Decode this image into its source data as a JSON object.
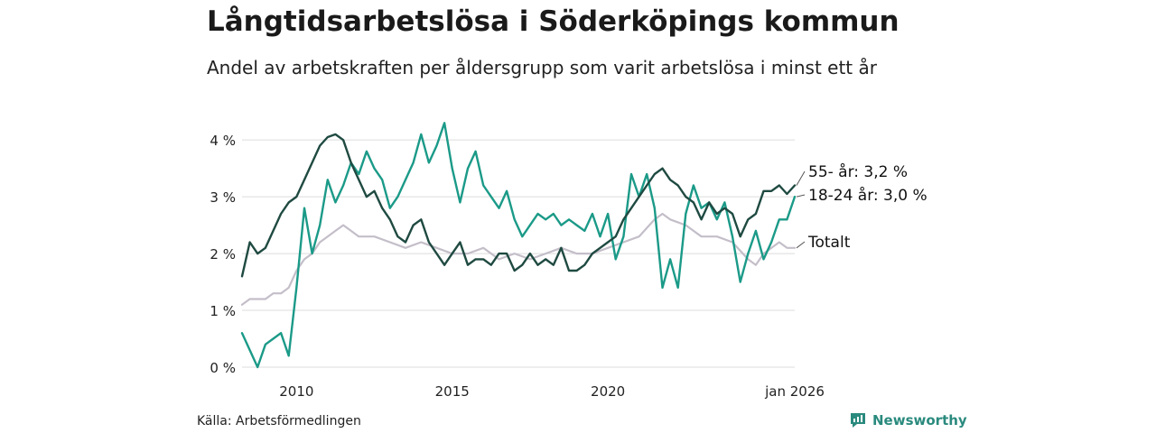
{
  "header": {
    "title": "Långtidsarbetslösa i Söderköpings kommun",
    "subtitle": "Andel av arbetskraften per åldersgrupp som varit arbetslösa i minst ett år"
  },
  "footer": {
    "source": "Källa: Arbetsförmedlingen",
    "brand": "Newsworthy"
  },
  "colors": {
    "series_55": "#1f4a41",
    "series_18_24": "#1b9a88",
    "series_total": "#c4bec9",
    "grid": "#dcdcdc",
    "brand": "#2a8a7e"
  },
  "chart_data": {
    "type": "line",
    "title": "Långtidsarbetslösa i Söderköpings kommun",
    "xlabel": "",
    "ylabel": "",
    "x_range": [
      2008.25,
      2026.0
    ],
    "ylim": [
      0,
      4.4
    ],
    "y_ticks": [
      0,
      1,
      2,
      3,
      4
    ],
    "y_tick_labels": [
      "0 %",
      "1 %",
      "2 %",
      "3 %",
      "4 %"
    ],
    "x_ticks": [
      2010,
      2015,
      2020,
      2026
    ],
    "x_tick_labels": [
      "2010",
      "2015",
      "2020",
      "jan 2026"
    ],
    "grid": true,
    "series": [
      {
        "name": "Totalt",
        "label": "Totalt",
        "color": "#c4bec9",
        "points": [
          [
            2008.25,
            1.1
          ],
          [
            2008.5,
            1.2
          ],
          [
            2008.75,
            1.2
          ],
          [
            2009.0,
            1.2
          ],
          [
            2009.25,
            1.3
          ],
          [
            2009.5,
            1.3
          ],
          [
            2009.75,
            1.4
          ],
          [
            2010.0,
            1.7
          ],
          [
            2010.25,
            1.9
          ],
          [
            2010.5,
            2.0
          ],
          [
            2010.75,
            2.2
          ],
          [
            2011.0,
            2.3
          ],
          [
            2011.25,
            2.4
          ],
          [
            2011.5,
            2.5
          ],
          [
            2011.75,
            2.4
          ],
          [
            2012.0,
            2.3
          ],
          [
            2012.5,
            2.3
          ],
          [
            2013.0,
            2.2
          ],
          [
            2013.5,
            2.1
          ],
          [
            2014.0,
            2.2
          ],
          [
            2014.5,
            2.1
          ],
          [
            2015.0,
            2.0
          ],
          [
            2015.5,
            2.0
          ],
          [
            2016.0,
            2.1
          ],
          [
            2016.5,
            1.9
          ],
          [
            2017.0,
            2.0
          ],
          [
            2017.5,
            1.9
          ],
          [
            2018.0,
            2.0
          ],
          [
            2018.5,
            2.1
          ],
          [
            2019.0,
            2.0
          ],
          [
            2019.5,
            2.0
          ],
          [
            2020.0,
            2.1
          ],
          [
            2020.5,
            2.2
          ],
          [
            2021.0,
            2.3
          ],
          [
            2021.5,
            2.6
          ],
          [
            2021.75,
            2.7
          ],
          [
            2022.0,
            2.6
          ],
          [
            2022.5,
            2.5
          ],
          [
            2023.0,
            2.3
          ],
          [
            2023.5,
            2.3
          ],
          [
            2024.0,
            2.2
          ],
          [
            2024.5,
            1.9
          ],
          [
            2024.75,
            1.8
          ],
          [
            2025.0,
            2.0
          ],
          [
            2025.5,
            2.2
          ],
          [
            2025.75,
            2.1
          ],
          [
            2026.0,
            2.1
          ]
        ],
        "end_label": "Totalt"
      },
      {
        "name": "18-24 år",
        "label": "18-24 år",
        "color": "#1b9a88",
        "points": [
          [
            2008.25,
            0.6
          ],
          [
            2008.5,
            0.3
          ],
          [
            2008.75,
            0.0
          ],
          [
            2009.0,
            0.4
          ],
          [
            2009.25,
            0.5
          ],
          [
            2009.5,
            0.6
          ],
          [
            2009.75,
            0.2
          ],
          [
            2010.0,
            1.4
          ],
          [
            2010.25,
            2.8
          ],
          [
            2010.5,
            2.0
          ],
          [
            2010.75,
            2.5
          ],
          [
            2011.0,
            3.3
          ],
          [
            2011.25,
            2.9
          ],
          [
            2011.5,
            3.2
          ],
          [
            2011.75,
            3.6
          ],
          [
            2012.0,
            3.4
          ],
          [
            2012.25,
            3.8
          ],
          [
            2012.5,
            3.5
          ],
          [
            2012.75,
            3.3
          ],
          [
            2013.0,
            2.8
          ],
          [
            2013.25,
            3.0
          ],
          [
            2013.5,
            3.3
          ],
          [
            2013.75,
            3.6
          ],
          [
            2014.0,
            4.1
          ],
          [
            2014.25,
            3.6
          ],
          [
            2014.5,
            3.9
          ],
          [
            2014.75,
            4.3
          ],
          [
            2015.0,
            3.5
          ],
          [
            2015.25,
            2.9
          ],
          [
            2015.5,
            3.5
          ],
          [
            2015.75,
            3.8
          ],
          [
            2016.0,
            3.2
          ],
          [
            2016.25,
            3.0
          ],
          [
            2016.5,
            2.8
          ],
          [
            2016.75,
            3.1
          ],
          [
            2017.0,
            2.6
          ],
          [
            2017.25,
            2.3
          ],
          [
            2017.5,
            2.5
          ],
          [
            2017.75,
            2.7
          ],
          [
            2018.0,
            2.6
          ],
          [
            2018.25,
            2.7
          ],
          [
            2018.5,
            2.5
          ],
          [
            2018.75,
            2.6
          ],
          [
            2019.0,
            2.5
          ],
          [
            2019.25,
            2.4
          ],
          [
            2019.5,
            2.7
          ],
          [
            2019.75,
            2.3
          ],
          [
            2020.0,
            2.7
          ],
          [
            2020.25,
            1.9
          ],
          [
            2020.5,
            2.3
          ],
          [
            2020.75,
            3.4
          ],
          [
            2021.0,
            3.0
          ],
          [
            2021.25,
            3.4
          ],
          [
            2021.5,
            2.8
          ],
          [
            2021.75,
            1.4
          ],
          [
            2022.0,
            1.9
          ],
          [
            2022.25,
            1.4
          ],
          [
            2022.5,
            2.7
          ],
          [
            2022.75,
            3.2
          ],
          [
            2023.0,
            2.8
          ],
          [
            2023.25,
            2.9
          ],
          [
            2023.5,
            2.6
          ],
          [
            2023.75,
            2.9
          ],
          [
            2024.0,
            2.3
          ],
          [
            2024.25,
            1.5
          ],
          [
            2024.5,
            2.0
          ],
          [
            2024.75,
            2.4
          ],
          [
            2025.0,
            1.9
          ],
          [
            2025.25,
            2.2
          ],
          [
            2025.5,
            2.6
          ],
          [
            2025.75,
            2.6
          ],
          [
            2026.0,
            3.0
          ]
        ],
        "end_label": "18-24 år: 3,0 %"
      },
      {
        "name": "55- år",
        "label": "55- år",
        "color": "#1f4a41",
        "points": [
          [
            2008.25,
            1.6
          ],
          [
            2008.5,
            2.2
          ],
          [
            2008.75,
            2.0
          ],
          [
            2009.0,
            2.1
          ],
          [
            2009.25,
            2.4
          ],
          [
            2009.5,
            2.7
          ],
          [
            2009.75,
            2.9
          ],
          [
            2010.0,
            3.0
          ],
          [
            2010.25,
            3.3
          ],
          [
            2010.5,
            3.6
          ],
          [
            2010.75,
            3.9
          ],
          [
            2011.0,
            4.05
          ],
          [
            2011.25,
            4.1
          ],
          [
            2011.5,
            4.0
          ],
          [
            2011.75,
            3.6
          ],
          [
            2012.0,
            3.3
          ],
          [
            2012.25,
            3.0
          ],
          [
            2012.5,
            3.1
          ],
          [
            2012.75,
            2.8
          ],
          [
            2013.0,
            2.6
          ],
          [
            2013.25,
            2.3
          ],
          [
            2013.5,
            2.2
          ],
          [
            2013.75,
            2.5
          ],
          [
            2014.0,
            2.6
          ],
          [
            2014.25,
            2.2
          ],
          [
            2014.5,
            2.0
          ],
          [
            2014.75,
            1.8
          ],
          [
            2015.0,
            2.0
          ],
          [
            2015.25,
            2.2
          ],
          [
            2015.5,
            1.8
          ],
          [
            2015.75,
            1.9
          ],
          [
            2016.0,
            1.9
          ],
          [
            2016.25,
            1.8
          ],
          [
            2016.5,
            2.0
          ],
          [
            2016.75,
            2.0
          ],
          [
            2017.0,
            1.7
          ],
          [
            2017.25,
            1.8
          ],
          [
            2017.5,
            2.0
          ],
          [
            2017.75,
            1.8
          ],
          [
            2018.0,
            1.9
          ],
          [
            2018.25,
            1.8
          ],
          [
            2018.5,
            2.1
          ],
          [
            2018.75,
            1.7
          ],
          [
            2019.0,
            1.7
          ],
          [
            2019.25,
            1.8
          ],
          [
            2019.5,
            2.0
          ],
          [
            2019.75,
            2.1
          ],
          [
            2020.0,
            2.2
          ],
          [
            2020.25,
            2.3
          ],
          [
            2020.5,
            2.6
          ],
          [
            2020.75,
            2.8
          ],
          [
            2021.0,
            3.0
          ],
          [
            2021.25,
            3.2
          ],
          [
            2021.5,
            3.4
          ],
          [
            2021.75,
            3.5
          ],
          [
            2022.0,
            3.3
          ],
          [
            2022.25,
            3.2
          ],
          [
            2022.5,
            3.0
          ],
          [
            2022.75,
            2.9
          ],
          [
            2023.0,
            2.6
          ],
          [
            2023.25,
            2.9
          ],
          [
            2023.5,
            2.7
          ],
          [
            2023.75,
            2.8
          ],
          [
            2024.0,
            2.7
          ],
          [
            2024.25,
            2.3
          ],
          [
            2024.5,
            2.6
          ],
          [
            2024.75,
            2.7
          ],
          [
            2025.0,
            3.1
          ],
          [
            2025.25,
            3.1
          ],
          [
            2025.5,
            3.2
          ],
          [
            2025.75,
            3.05
          ],
          [
            2026.0,
            3.2
          ]
        ],
        "end_label": "55- år: 3,2 %"
      }
    ]
  }
}
